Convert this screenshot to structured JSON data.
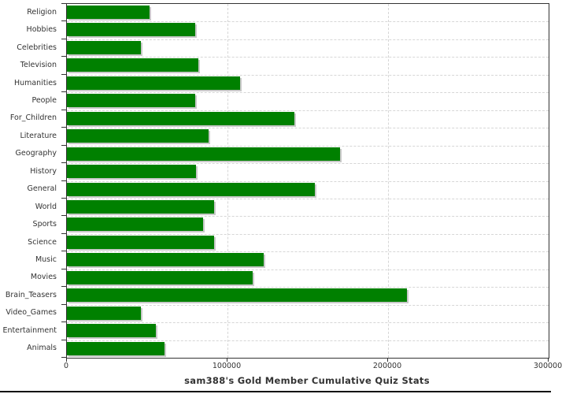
{
  "chart_data": {
    "type": "bar",
    "orientation": "horizontal",
    "title": "sam388's Gold Member Cumulative Quiz Stats",
    "categories": [
      "Religion",
      "Hobbies",
      "Celebrities",
      "Television",
      "Humanities",
      "People",
      "For_Children",
      "Literature",
      "Geography",
      "History",
      "General",
      "World",
      "Sports",
      "Science",
      "Music",
      "Movies",
      "Brain_Teasers",
      "Video_Games",
      "Entertainment",
      "Animals"
    ],
    "values": [
      51500,
      80000,
      46000,
      82000,
      108000,
      80000,
      141500,
      88000,
      170000,
      80500,
      154500,
      91500,
      85000,
      91500,
      122500,
      115500,
      212000,
      46000,
      55500,
      61000
    ],
    "xlabel": "",
    "ylabel": "",
    "xlim": [
      0,
      300000
    ],
    "xticks": [
      0,
      100000,
      200000,
      300000
    ],
    "xtick_labels": [
      "0",
      "100000",
      "200000",
      "300000"
    ],
    "grid": "dashed",
    "legend": "none",
    "bar_color": "#008000",
    "bar_shadow_color": "#c9c9c9",
    "gridline_color": "#d6d6d6",
    "axis_color": "#333333",
    "text_color": "#333333",
    "background_color": "#ffffff"
  }
}
